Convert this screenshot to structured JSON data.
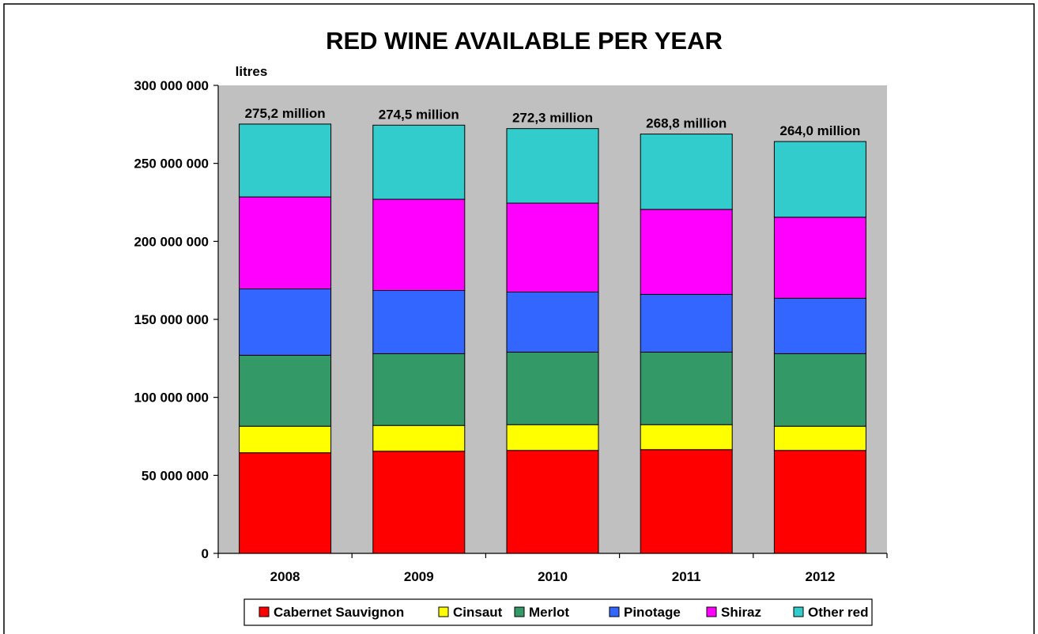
{
  "chart_data": {
    "type": "bar",
    "stacked": true,
    "title": "RED WINE AVAILABLE PER YEAR",
    "ylabel": "litres",
    "xlabel": "",
    "ylim": [
      0,
      300000000
    ],
    "yticks": [
      0,
      50000000,
      100000000,
      150000000,
      200000000,
      250000000,
      300000000
    ],
    "ytick_labels": [
      "0",
      "50 000 000",
      "100 000 000",
      "150 000 000",
      "200 000 000",
      "250 000 000",
      "300 000 000"
    ],
    "categories": [
      "2008",
      "2009",
      "2010",
      "2011",
      "2012"
    ],
    "totals_labels": [
      "275,2 million",
      "274,5 million",
      "272,3 million",
      "268,8 million",
      "264,0 million"
    ],
    "grid": false,
    "legend_position": "bottom",
    "series": [
      {
        "name": "Cabernet Sauvignon",
        "color": "#ff0000",
        "values": [
          64500000,
          65500000,
          66000000,
          66500000,
          66000000
        ]
      },
      {
        "name": "Cinsaut",
        "color": "#ffff00",
        "values": [
          17000000,
          16500000,
          16500000,
          16000000,
          15500000
        ]
      },
      {
        "name": "Merlot",
        "color": "#339966",
        "values": [
          45500000,
          46000000,
          46500000,
          46500000,
          46500000
        ]
      },
      {
        "name": "Pinotage",
        "color": "#3366ff",
        "values": [
          42500000,
          40500000,
          38500000,
          37000000,
          35500000
        ]
      },
      {
        "name": "Shiraz",
        "color": "#ff00ff",
        "values": [
          59000000,
          58500000,
          57000000,
          54500000,
          52000000
        ]
      },
      {
        "name": "Other red",
        "color": "#33cccc",
        "values": [
          46700000,
          47500000,
          47800000,
          48300000,
          48500000
        ]
      }
    ]
  }
}
